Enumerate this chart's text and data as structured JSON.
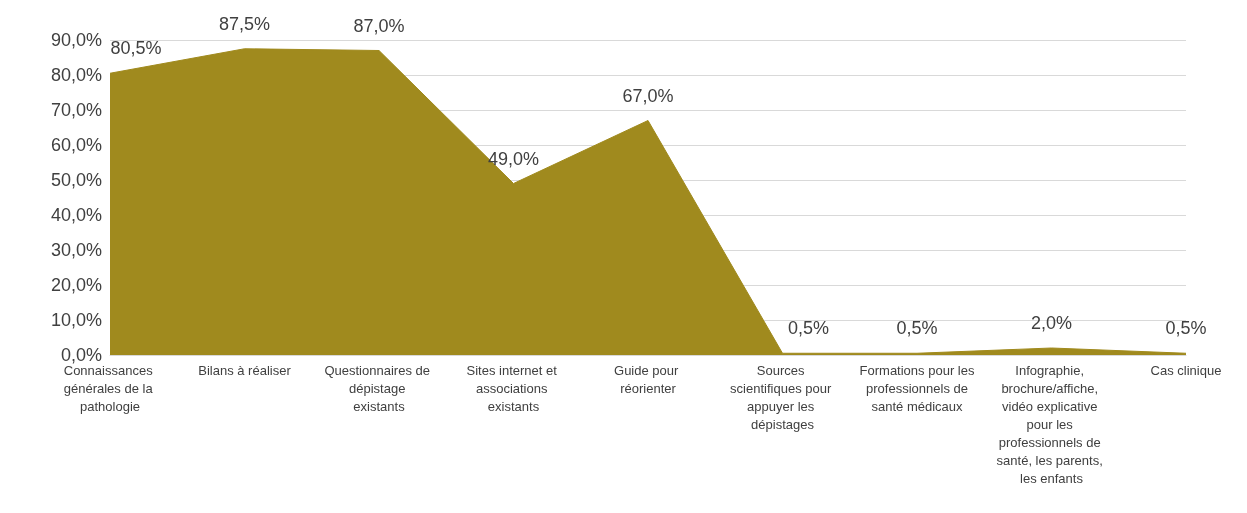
{
  "chart_data": {
    "type": "area",
    "categories": [
      "Connaissances générales de la pathologie",
      "Bilans à réaliser",
      "Questionnaires de dépistage existants",
      "Sites internet et associations existants",
      "Guide pour réorienter",
      "Sources scientifiques pour appuyer les dépistages",
      "Formations pour les professionnels de santé médicaux",
      "Infographie, brochure/affiche, vidéo explicative pour les professionnels de santé, les parents, les enfants",
      "Cas clinique"
    ],
    "values": [
      80.5,
      87.5,
      87.0,
      49.0,
      67.0,
      0.5,
      0.5,
      2.0,
      0.5
    ],
    "value_labels": [
      "80,5%",
      "87,5%",
      "87,0%",
      "49,0%",
      "67,0%",
      "0,5%",
      "0,5%",
      "2,0%",
      "0,5%"
    ],
    "color": "#a08a1e",
    "ylim": [
      0,
      90
    ],
    "yticks": [
      {
        "value": 0,
        "label": "0,0%"
      },
      {
        "value": 10,
        "label": "10,0%"
      },
      {
        "value": 20,
        "label": "20,0%"
      },
      {
        "value": 30,
        "label": "30,0%"
      },
      {
        "value": 40,
        "label": "40,0%"
      },
      {
        "value": 50,
        "label": "50,0%"
      },
      {
        "value": 60,
        "label": "60,0%"
      },
      {
        "value": 70,
        "label": "70,0%"
      },
      {
        "value": 80,
        "label": "80,0%"
      },
      {
        "value": 90,
        "label": "90,0%"
      }
    ],
    "grid": "y"
  }
}
